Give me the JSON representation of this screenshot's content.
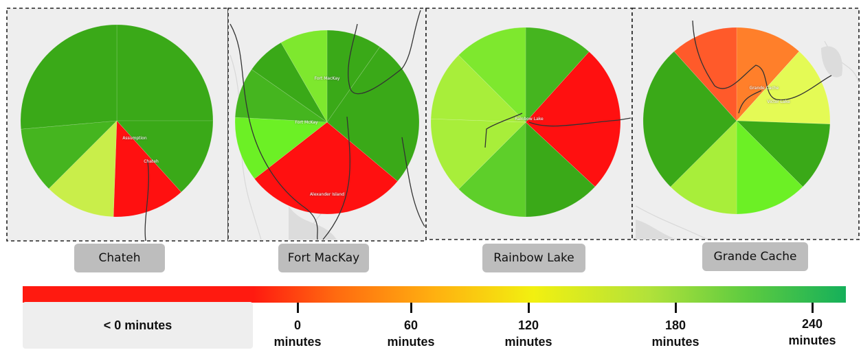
{
  "colors": {
    "dark_green": "#3aa918",
    "mid_green": "#45b51f",
    "green": "#5ecf2a",
    "light_green": "#7ee82e",
    "lime": "#a8ee3a",
    "yellow_green": "#c9ee4a",
    "yellow": "#e4fa55",
    "orange": "#ff7f2a",
    "orange_red": "#ff5a2a",
    "red": "#ff1010",
    "panel_bg": "#eeeeee"
  },
  "panels": [
    {
      "name": "Chateh",
      "map_labels": [
        "Assumption",
        "Chateh"
      ],
      "sectors": [
        {
          "start": 0,
          "end": 90,
          "color": "#3aa918"
        },
        {
          "start": 90,
          "end": 138,
          "color": "#3aa918"
        },
        {
          "start": 138,
          "end": 182,
          "color": "#ff1010"
        },
        {
          "start": 182,
          "end": 225,
          "color": "#c9ee4a"
        },
        {
          "start": 225,
          "end": 265,
          "color": "#45b51f"
        },
        {
          "start": 265,
          "end": 360,
          "color": "#3aa918"
        }
      ]
    },
    {
      "name": "Fort MacKay",
      "map_labels": [
        "Fort MacKay",
        "Fort McKay",
        "Alexander Island"
      ],
      "sectors": [
        {
          "start": 0,
          "end": 35,
          "color": "#3aa918"
        },
        {
          "start": 35,
          "end": 130,
          "color": "#3aa918"
        },
        {
          "start": 130,
          "end": 232,
          "color": "#ff1010"
        },
        {
          "start": 232,
          "end": 273,
          "color": "#6cf025"
        },
        {
          "start": 273,
          "end": 305,
          "color": "#45b51f"
        },
        {
          "start": 305,
          "end": 330,
          "color": "#3aa918"
        },
        {
          "start": 330,
          "end": 360,
          "color": "#7ee82e"
        }
      ]
    },
    {
      "name": "Rainbow Lake",
      "map_labels": [
        "Rainbow Lake"
      ],
      "sectors": [
        {
          "start": 0,
          "end": 42,
          "color": "#45b51f"
        },
        {
          "start": 42,
          "end": 133,
          "color": "#ff1010"
        },
        {
          "start": 133,
          "end": 180,
          "color": "#3aa918"
        },
        {
          "start": 180,
          "end": 225,
          "color": "#5ecf2a"
        },
        {
          "start": 225,
          "end": 272,
          "color": "#a8ee3a"
        },
        {
          "start": 272,
          "end": 315,
          "color": "#a8ee3a"
        },
        {
          "start": 315,
          "end": 360,
          "color": "#7ee82e"
        }
      ]
    },
    {
      "name": "Grande Cache",
      "map_labels": [
        "Grande Cache",
        "Victor Lake"
      ],
      "sectors": [
        {
          "start": 0,
          "end": 42,
          "color": "#ff7f2a"
        },
        {
          "start": 42,
          "end": 92,
          "color": "#e4fa55"
        },
        {
          "start": 92,
          "end": 135,
          "color": "#3aa918"
        },
        {
          "start": 135,
          "end": 180,
          "color": "#6cf025"
        },
        {
          "start": 180,
          "end": 225,
          "color": "#a8ee3a"
        },
        {
          "start": 225,
          "end": 318,
          "color": "#3aa918"
        },
        {
          "start": 318,
          "end": 360,
          "color": "#ff5a2a"
        }
      ]
    }
  ],
  "legend": {
    "negative_label": "< 0 minutes",
    "ticks": [
      {
        "value": "0",
        "unit": "minutes"
      },
      {
        "value": "60",
        "unit": "minutes"
      },
      {
        "value": "120",
        "unit": "minutes"
      },
      {
        "value": "180",
        "unit": "minutes"
      },
      {
        "value": "240",
        "unit": "minutes"
      }
    ]
  }
}
